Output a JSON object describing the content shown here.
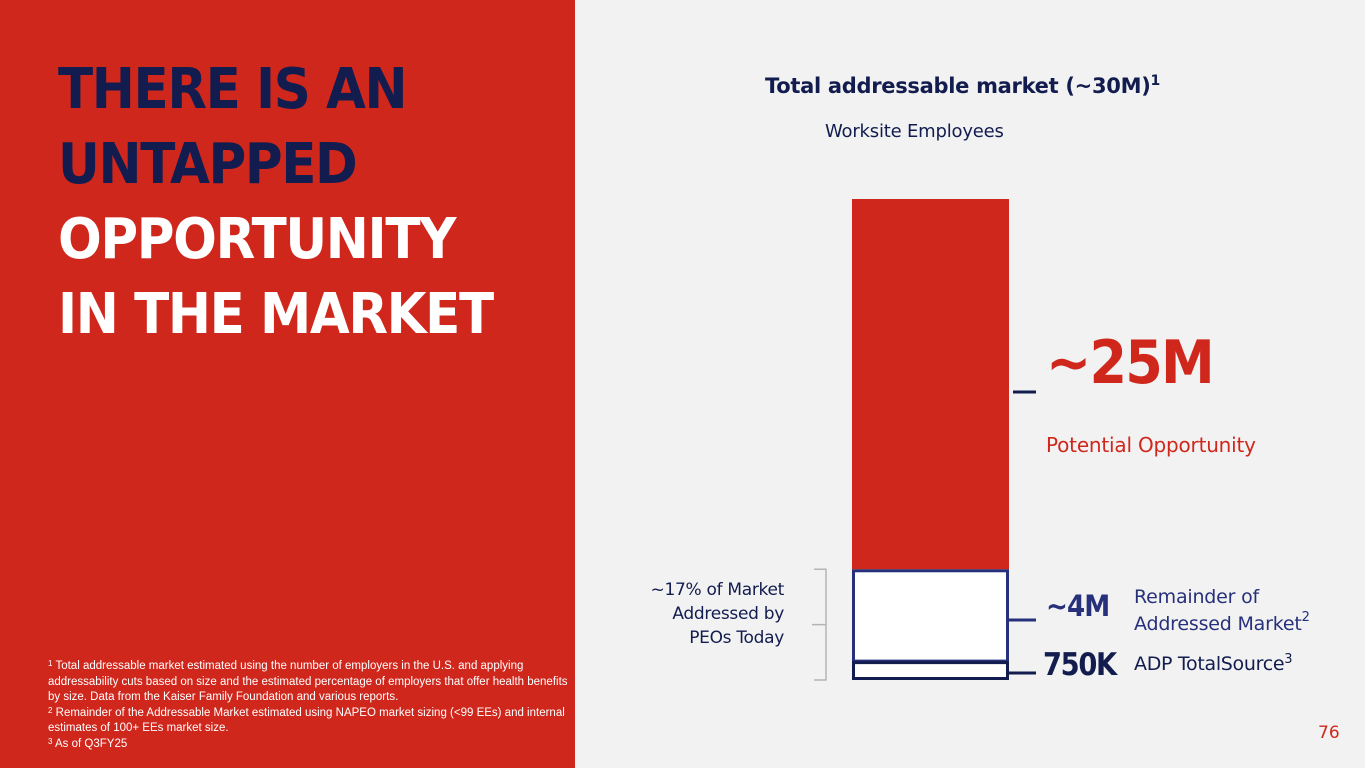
{
  "headline": {
    "line1": "THERE IS AN",
    "line2": "UNTAPPED",
    "line3": "OPPORTUNITY",
    "line4": "IN THE MARKET"
  },
  "footnotes": [
    {
      "marker": "1",
      "text": "Total addressable market estimated using the number of employers in the U.S. and applying addressability cuts based on size and the estimated percentage of employers that offer health benefits by size. Data from the Kaiser Family Foundation and various reports."
    },
    {
      "marker": "2",
      "text": "Remainder of the Addressable Market estimated using NAPEO market sizing (<99 EEs) and internal estimates of 100+ EEs market size."
    },
    {
      "marker": "3",
      "text": "As of Q3FY25"
    }
  ],
  "page_number": "76",
  "colors": {
    "red": "#d0271d",
    "navy": "#121c4e",
    "blue": "#27307a",
    "background": "#f2f2f2",
    "bracket_gray": "#b4b4b4"
  },
  "chart_data": {
    "type": "bar",
    "stacked": true,
    "title": "Total addressable market (~30M)",
    "title_footnote": "1",
    "subtitle": "Worksite Employees",
    "unit": "millions of worksite employees",
    "total": 30,
    "segments": [
      {
        "name": "Potential Opportunity",
        "value_label": "~25M",
        "value": 25,
        "color": "#d0271d",
        "footnote": ""
      },
      {
        "name": "Remainder of Addressed Market",
        "name_line1": "Remainder of",
        "name_line2": "Addressed Market",
        "value_label": "~4M",
        "value": 4,
        "color": "#27307a",
        "footnote": "2"
      },
      {
        "name": "ADP TotalSource",
        "value_label": "750K",
        "value": 0.75,
        "color": "#121c4e",
        "footnote": "3"
      }
    ],
    "bracket_annotation": {
      "line1": "~17% of Market",
      "line2": "Addressed by",
      "line3": "PEOs Today"
    }
  }
}
